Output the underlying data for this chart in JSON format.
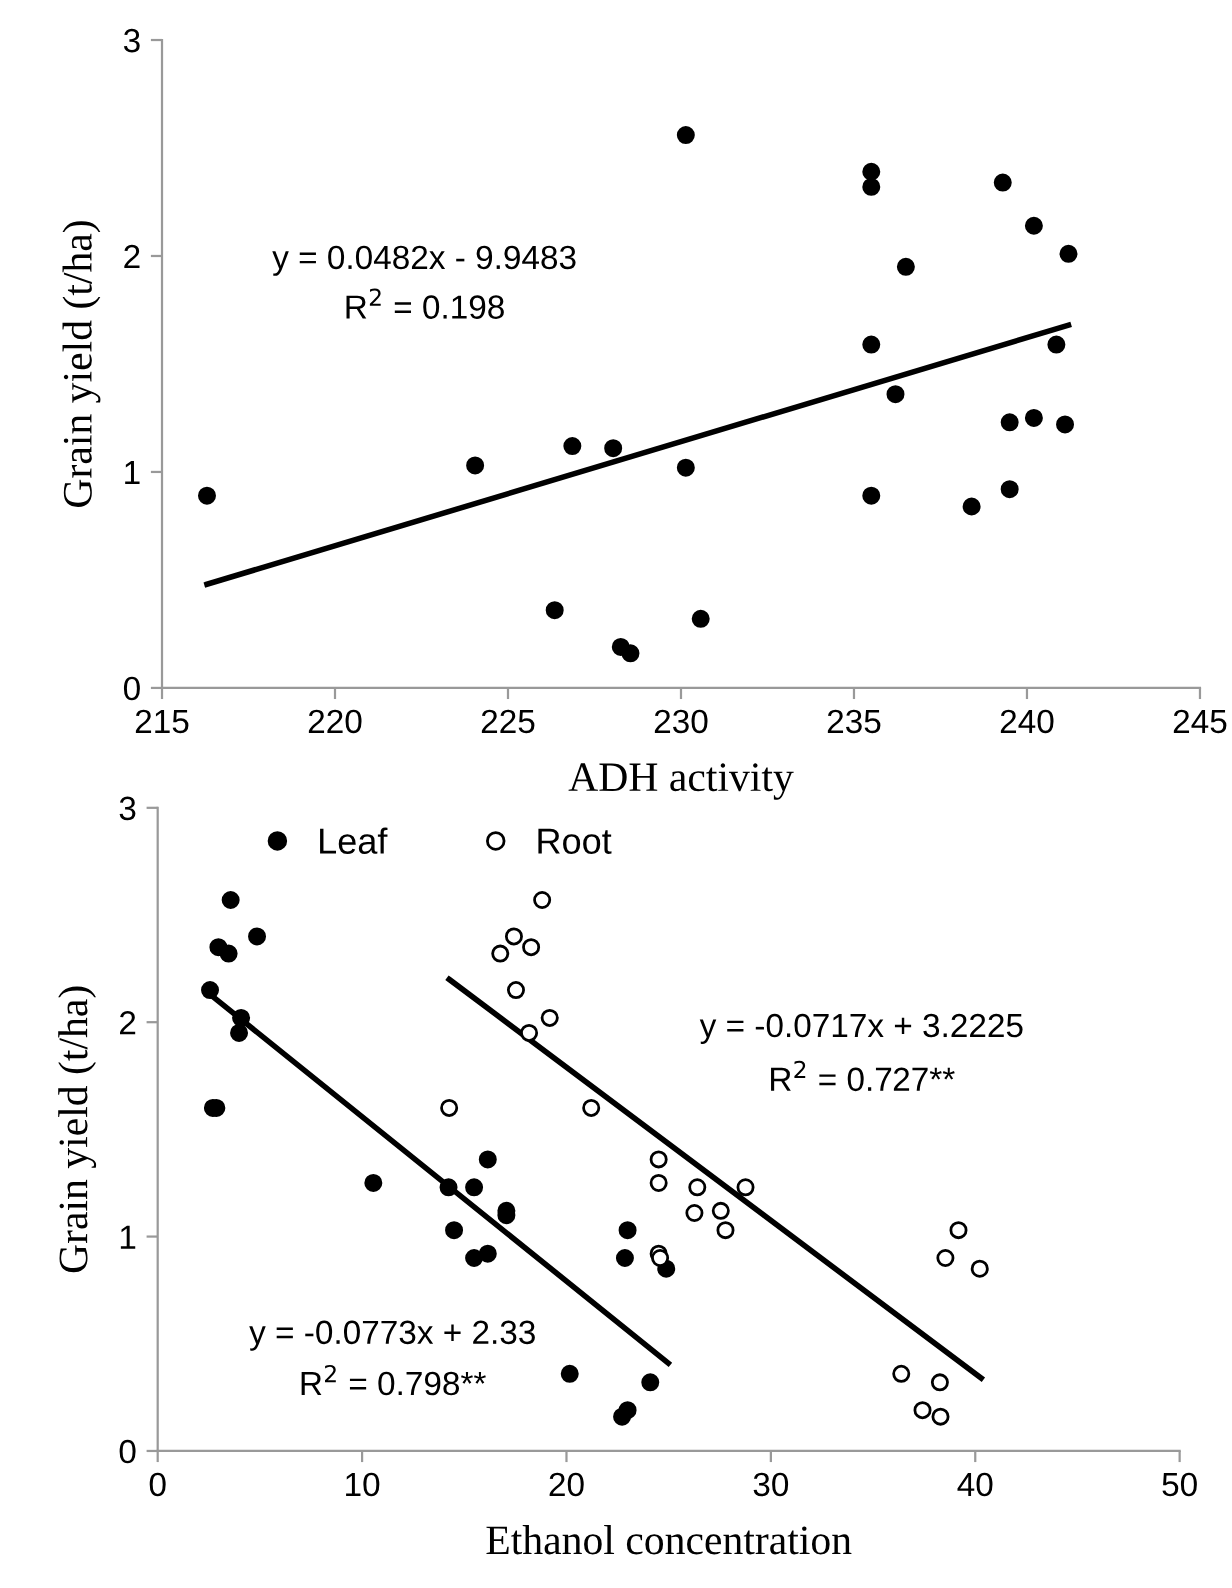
{
  "chart_data": [
    {
      "type": "scatter",
      "xlabel": "ADH activity",
      "ylabel": "Grain yield (t/ha)",
      "xlim": [
        215,
        245
      ],
      "ylim": [
        0,
        3
      ],
      "xticks": [
        215,
        220,
        225,
        230,
        235,
        240,
        245
      ],
      "yticks": [
        0,
        1,
        2,
        3
      ],
      "grid": false,
      "legend": false,
      "marker": "circle",
      "series": [
        {
          "color": "#000000",
          "x": [
            216.3,
            224.05,
            226.35,
            226.86,
            228.04,
            228.26,
            228.54,
            230.14,
            230.14,
            230.57,
            235.5,
            235.5,
            235.5,
            235.5,
            236.2,
            236.5,
            238.4,
            239.3,
            239.5,
            239.5,
            240.2,
            240.2,
            240.85,
            241.2,
            241.1
          ],
          "values": [
            0.89,
            1.03,
            0.36,
            1.12,
            1.11,
            0.19,
            0.16,
            2.56,
            1.02,
            0.32,
            2.39,
            2.32,
            1.59,
            0.89,
            1.36,
            1.95,
            0.84,
            2.34,
            1.23,
            0.92,
            2.14,
            1.25,
            1.59,
            2.01,
            1.22
          ]
        },
        {
          "type": "line",
          "marker": "none",
          "color": "#000000",
          "x": [
            216.3,
            241.2
          ],
          "values": [
            0.48,
            1.68
          ]
        }
      ],
      "annotations": [
        "y = 0.0482x - 9.9483",
        "R$^{2}$ = 0.198"
      ]
    },
    {
      "type": "scatter",
      "xlabel": "Ethanol concentration",
      "ylabel": "Grain yield (t/ha)",
      "xlim": [
        0,
        50
      ],
      "ylim": [
        0,
        3
      ],
      "xticks": [
        0,
        10,
        20,
        30,
        40,
        50
      ],
      "yticks": [
        0,
        1,
        2,
        3
      ],
      "grid": false,
      "legend": "top left",
      "marker": "circle",
      "series": [
        {
          "name": "Leaf",
          "color": "#000000",
          "x": [
            2.56,
            2.97,
            3.47,
            3.57,
            4.86,
            4.08,
            3.98,
            2.7,
            2.87,
            10.55,
            14.23,
            14.5,
            15.48,
            15.48,
            16.15,
            16.15,
            17.06,
            17.06,
            20.16,
            22.72,
            22.99,
            22.86,
            22.99,
            24.1,
            24.88
          ],
          "values": [
            2.15,
            2.35,
            2.32,
            2.57,
            2.4,
            2.02,
            1.95,
            1.6,
            1.6,
            1.25,
            1.23,
            1.03,
            1.23,
            0.9,
            1.36,
            0.92,
            1.12,
            1.1,
            0.36,
            0.16,
            0.19,
            0.9,
            1.03,
            0.32,
            0.85
          ]
        },
        {
          "name": "Root",
          "color": "#ffffff",
          "x": [
            14.26,
            16.76,
            17.43,
            17.53,
            18.27,
            18.81,
            18.17,
            19.18,
            21.21,
            24.51,
            24.51,
            24.51,
            24.58,
            26.26,
            26.4,
            27.55,
            27.78,
            28.76,
            36.38,
            37.42,
            38.27,
            38.3,
            38.54,
            39.18,
            40.22
          ],
          "values": [
            1.6,
            2.32,
            2.4,
            2.15,
            2.35,
            2.57,
            1.95,
            2.02,
            1.6,
            1.36,
            1.25,
            0.92,
            0.9,
            1.11,
            1.23,
            1.12,
            1.03,
            1.23,
            0.36,
            0.19,
            0.32,
            0.16,
            0.9,
            1.03,
            0.85
          ]
        },
        {
          "type": "line",
          "marker": "none",
          "color": "#000000",
          "x": [
            2.56,
            24.98
          ],
          "values": [
            2.13,
            0.41
          ]
        },
        {
          "type": "line",
          "marker": "none",
          "color": "#000000",
          "x": [
            14.26,
            40.29
          ],
          "values": [
            2.2,
            0.34
          ]
        }
      ],
      "annotations": [
        "y = -0.0773x + 2.33",
        "R$^{2}$ = 0.798**",
        "y = -0.0717x + 3.2225",
        "R$^{2}$ = 0.727**"
      ]
    }
  ]
}
